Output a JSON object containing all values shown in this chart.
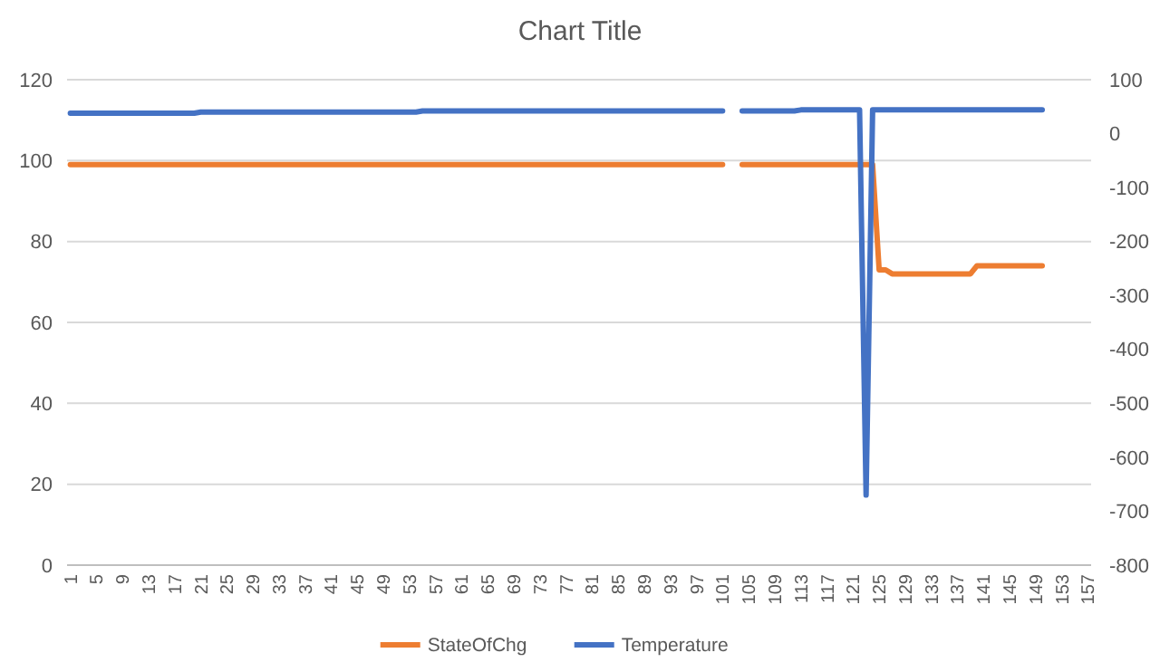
{
  "chart_data": {
    "type": "line",
    "title": "Chart Title",
    "categories": [
      "1",
      null,
      null,
      null,
      "5",
      null,
      null,
      null,
      "9",
      null,
      null,
      null,
      "13",
      null,
      null,
      null,
      "17",
      null,
      null,
      null,
      "21",
      null,
      null,
      null,
      "25",
      null,
      null,
      null,
      "29",
      null,
      null,
      null,
      "33",
      null,
      null,
      null,
      "37",
      null,
      null,
      null,
      "41",
      null,
      null,
      null,
      "45",
      null,
      null,
      null,
      "49",
      null,
      null,
      null,
      "53",
      null,
      null,
      null,
      "57",
      null,
      null,
      null,
      "61",
      null,
      null,
      null,
      "65",
      null,
      null,
      null,
      "69",
      null,
      null,
      null,
      "73",
      null,
      null,
      null,
      "77",
      null,
      null,
      null,
      "81",
      null,
      null,
      null,
      "85",
      null,
      null,
      null,
      "89",
      null,
      null,
      null,
      "93",
      null,
      null,
      null,
      "97",
      null,
      null,
      null,
      "101",
      null,
      null,
      null,
      "105",
      null,
      null,
      null,
      "109",
      null,
      null,
      null,
      "113",
      null,
      null,
      null,
      "117",
      null,
      null,
      null,
      "121",
      null,
      null,
      null,
      "125",
      null,
      null,
      null,
      "129",
      null,
      null,
      null,
      "133",
      null,
      null,
      null,
      "137",
      null,
      null,
      null,
      "141",
      null,
      null,
      null,
      "145",
      null,
      null,
      null,
      "149",
      null,
      null,
      null,
      "153",
      null,
      null,
      null,
      "157"
    ],
    "series": [
      {
        "name": "StateOfChg",
        "color": "#ed7d31",
        "values": [
          99,
          99,
          99,
          99,
          99,
          99,
          99,
          99,
          99,
          99,
          99,
          99,
          99,
          99,
          99,
          99,
          99,
          99,
          99,
          99,
          99,
          99,
          99,
          99,
          99,
          99,
          99,
          99,
          99,
          99,
          99,
          99,
          99,
          99,
          99,
          99,
          99,
          99,
          99,
          99,
          99,
          99,
          99,
          99,
          99,
          99,
          99,
          99,
          99,
          99,
          99,
          99,
          99,
          99,
          99,
          99,
          99,
          99,
          99,
          99,
          99,
          99,
          99,
          99,
          99,
          99,
          99,
          99,
          99,
          99,
          99,
          99,
          99,
          99,
          99,
          99,
          99,
          99,
          99,
          99,
          99,
          99,
          99,
          99,
          99,
          99,
          99,
          99,
          99,
          99,
          99,
          99,
          99,
          99,
          99,
          99,
          99,
          99,
          99,
          99,
          99,
          null,
          null,
          99,
          99,
          99,
          99,
          99,
          99,
          99,
          99,
          99,
          99,
          99,
          99,
          99,
          99,
          99,
          99,
          99,
          99,
          99,
          99,
          99,
          73,
          73,
          72,
          72,
          72,
          72,
          72,
          72,
          72,
          72,
          72,
          72,
          72,
          72,
          72,
          74,
          74,
          74,
          74,
          74,
          74,
          74,
          74,
          74,
          74,
          74,
          null,
          null,
          null,
          null,
          null,
          null,
          null
        ]
      },
      {
        "name": "Temperature",
        "color": "#4472c4",
        "axis": "y2",
        "values": [
          38,
          38,
          38,
          38,
          38,
          38,
          38,
          38,
          38,
          38,
          38,
          38,
          38,
          38,
          38,
          38,
          38,
          38,
          38,
          38,
          40,
          40,
          40,
          40,
          40,
          40,
          40,
          40,
          40,
          40,
          40,
          40,
          40,
          40,
          40,
          40,
          40,
          40,
          40,
          40,
          40,
          40,
          40,
          40,
          40,
          40,
          40,
          40,
          40,
          40,
          40,
          40,
          40,
          40,
          42,
          42,
          42,
          42,
          42,
          42,
          42,
          42,
          42,
          42,
          42,
          42,
          42,
          42,
          42,
          42,
          42,
          42,
          42,
          42,
          42,
          42,
          42,
          42,
          42,
          42,
          42,
          42,
          42,
          42,
          42,
          42,
          42,
          42,
          42,
          42,
          42,
          42,
          42,
          42,
          42,
          42,
          42,
          42,
          42,
          42,
          42,
          null,
          null,
          42,
          42,
          42,
          42,
          42,
          42,
          42,
          42,
          42,
          44,
          44,
          44,
          44,
          44,
          44,
          44,
          44,
          44,
          44,
          -670,
          44,
          44,
          44,
          44,
          44,
          44,
          44,
          44,
          44,
          44,
          44,
          44,
          44,
          44,
          44,
          44,
          44,
          44,
          44,
          44,
          44,
          44,
          44,
          44,
          44,
          44,
          44,
          null,
          null,
          null,
          null,
          null,
          null,
          null
        ]
      }
    ],
    "ylim": [
      0,
      120
    ],
    "yticks": [
      0,
      20,
      40,
      60,
      80,
      100,
      120
    ],
    "y2lim": [
      -800,
      100
    ],
    "y2ticks": [
      -800,
      -700,
      -600,
      -500,
      -400,
      -300,
      -200,
      -100,
      0,
      100
    ],
    "grid": "y",
    "legend": "bottom",
    "marker": "none",
    "line_style": "solid"
  }
}
